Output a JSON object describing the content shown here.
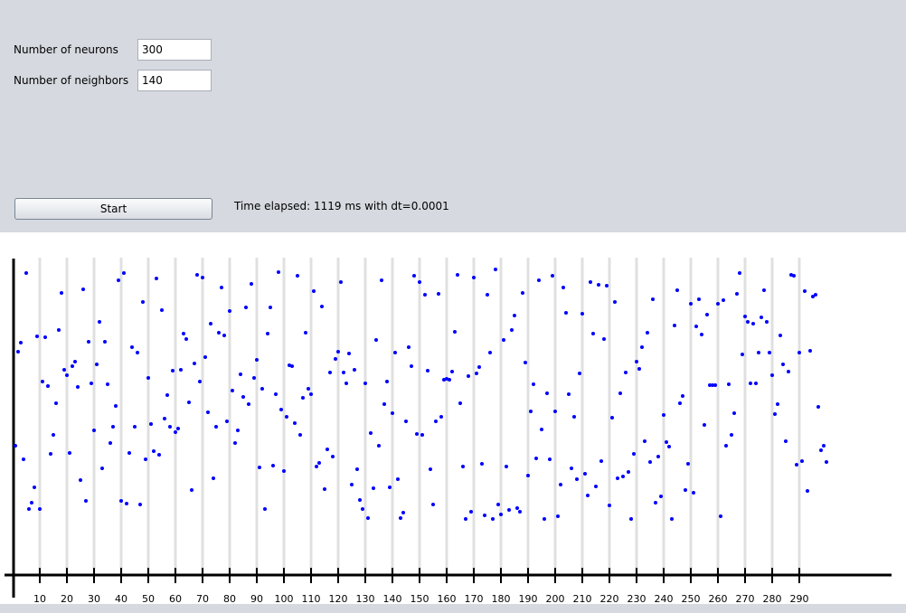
{
  "form": {
    "fields": [
      {
        "label": "Number of neurons",
        "value": "300"
      },
      {
        "label": "Number of neighbors",
        "value": "140"
      }
    ],
    "button": "Start",
    "status": "Time elapsed: 1119 ms with dt=0.0001"
  },
  "chart_data": {
    "type": "scatter",
    "color": "#0000ff",
    "grid": true,
    "x": [
      1,
      2,
      3,
      4,
      5,
      6,
      7,
      8,
      9,
      10,
      11,
      12,
      13,
      14,
      15,
      16,
      17,
      18,
      19,
      20,
      21,
      22,
      23,
      24,
      25,
      26,
      27,
      28,
      29,
      30,
      31,
      32,
      33,
      34,
      35,
      36,
      37,
      38,
      39,
      40,
      41,
      42,
      43,
      44,
      45,
      46,
      47,
      48,
      49,
      50,
      51,
      52,
      53,
      54,
      55,
      56,
      57,
      58,
      59,
      60,
      61,
      62,
      63,
      64,
      65,
      66,
      67,
      68,
      69,
      70,
      71,
      72,
      73,
      74,
      75,
      76,
      77,
      78,
      79,
      80,
      81,
      82,
      83,
      84,
      85,
      86,
      87,
      88,
      89,
      90,
      91,
      92,
      93,
      94,
      95,
      96,
      97,
      98,
      99,
      100,
      101,
      102,
      103,
      104,
      105,
      106,
      107,
      108,
      109,
      110,
      111,
      112,
      113,
      114,
      115,
      116,
      117,
      118,
      119,
      120,
      121,
      122,
      123,
      124,
      125,
      126,
      127,
      128,
      129,
      130,
      131,
      132,
      133,
      134,
      135,
      136,
      137,
      138,
      139,
      140,
      141,
      142,
      143,
      144,
      145,
      146,
      147,
      148,
      149,
      150,
      151,
      152,
      153,
      154,
      155,
      156,
      157,
      158,
      159,
      160,
      161,
      162,
      163,
      164,
      165,
      166,
      167,
      168,
      169,
      170,
      171,
      172,
      173,
      174,
      175,
      176,
      177,
      178,
      179,
      180,
      181,
      182,
      183,
      184,
      185,
      186,
      187,
      188,
      189,
      190,
      191,
      192,
      193,
      194,
      195,
      196,
      197,
      198,
      199,
      200,
      201,
      202,
      203,
      204,
      205,
      206,
      207,
      208,
      209,
      210,
      211,
      212,
      213,
      214,
      215,
      216,
      217,
      218,
      219,
      220,
      221,
      222,
      223,
      224,
      225,
      226,
      227,
      228,
      229,
      230,
      231,
      232,
      233,
      234,
      235,
      236,
      237,
      238,
      239,
      240,
      241,
      242,
      243,
      244,
      245,
      246,
      247,
      248,
      249,
      250,
      251,
      252,
      253,
      254,
      255,
      256,
      257,
      258,
      259,
      260,
      261,
      262,
      263,
      264,
      265,
      266,
      267,
      268,
      269,
      270,
      271,
      272,
      273,
      274,
      275,
      276,
      277,
      278,
      279,
      280,
      281,
      282,
      283,
      284,
      285,
      286,
      287,
      288,
      289,
      290,
      291,
      292,
      293,
      294,
      295,
      296,
      297,
      298,
      299,
      300
    ],
    "values": [
      143,
      247,
      257,
      128,
      334,
      73,
      80,
      97,
      264,
      73,
      214,
      263,
      209,
      134,
      155,
      190,
      271,
      312,
      227,
      221,
      135,
      231,
      236,
      208,
      105,
      316,
      82,
      258,
      212,
      160,
      233,
      280,
      118,
      258,
      211,
      146,
      164,
      187,
      326,
      82,
      334,
      79,
      135,
      252,
      164,
      246,
      78,
      302,
      128,
      218,
      167,
      137,
      328,
      133,
      293,
      173,
      199,
      164,
      226,
      158,
      162,
      227,
      267,
      261,
      191,
      94,
      234,
      332,
      214,
      329,
      241,
      180,
      278,
      107,
      164,
      268,
      318,
      265,
      170,
      292,
      204,
      146,
      160,
      222,
      197,
      296,
      189,
      322,
      218,
      238,
      119,
      206,
      73,
      267,
      296,
      121,
      200,
      335,
      183,
      115,
      175,
      232,
      231,
      168,
      331,
      155,
      196,
      268,
      206,
      200,
      314,
      120,
      124,
      297,
      95,
      139,
      224,
      131,
      239,
      247,
      324,
      224,
      212,
      245,
      100,
      227,
      117,
      83,
      73,
      212,
      63,
      157,
      96,
      260,
      143,
      326,
      189,
      214,
      97,
      179,
      246,
      106,
      63,
      69,
      170,
      252,
      231,
      331,
      156,
      324,
      155,
      310,
      226,
      117,
      78,
      170,
      311,
      175,
      216,
      217,
      216,
      225,
      269,
      332,
      190,
      120,
      62,
      220,
      70,
      329,
      223,
      230,
      123,
      66,
      310,
      246,
      62,
      338,
      78,
      67,
      260,
      120,
      72,
      271,
      287,
      74,
      70,
      312,
      235,
      110,
      181,
      211,
      129,
      326,
      161,
      62,
      201,
      128,
      331,
      181,
      65,
      100,
      318,
      290,
      200,
      118,
      175,
      106,
      223,
      289,
      112,
      88,
      324,
      267,
      98,
      321,
      126,
      261,
      320,
      77,
      174,
      302,
      107,
      201,
      109,
      224,
      114,
      62,
      134,
      236,
      228,
      252,
      148,
      268,
      125,
      305,
      80,
      131,
      87,
      177,
      147,
      142,
      62,
      276,
      315,
      190,
      198,
      94,
      123,
      300,
      91,
      275,
      305,
      266,
      166,
      288,
      210,
      210,
      210,
      300,
      65,
      304,
      143,
      211,
      155,
      179,
      311,
      334,
      244,
      286,
      280,
      212,
      278,
      212,
      246,
      285,
      315,
      280,
      246,
      221,
      178,
      189,
      265,
      233,
      148,
      225,
      332,
      331,
      122,
      246,
      126,
      314,
      93,
      248,
      308,
      310,
      186,
      138,
      143,
      125
    ],
    "xlim": [
      0,
      324
    ],
    "ylim": [
      0,
      351
    ],
    "xticks": [
      10,
      20,
      30,
      40,
      50,
      60,
      70,
      80,
      90,
      100,
      110,
      120,
      130,
      140,
      150,
      160,
      170,
      180,
      190,
      200,
      210,
      220,
      230,
      240,
      250,
      260,
      270,
      280,
      290
    ]
  }
}
